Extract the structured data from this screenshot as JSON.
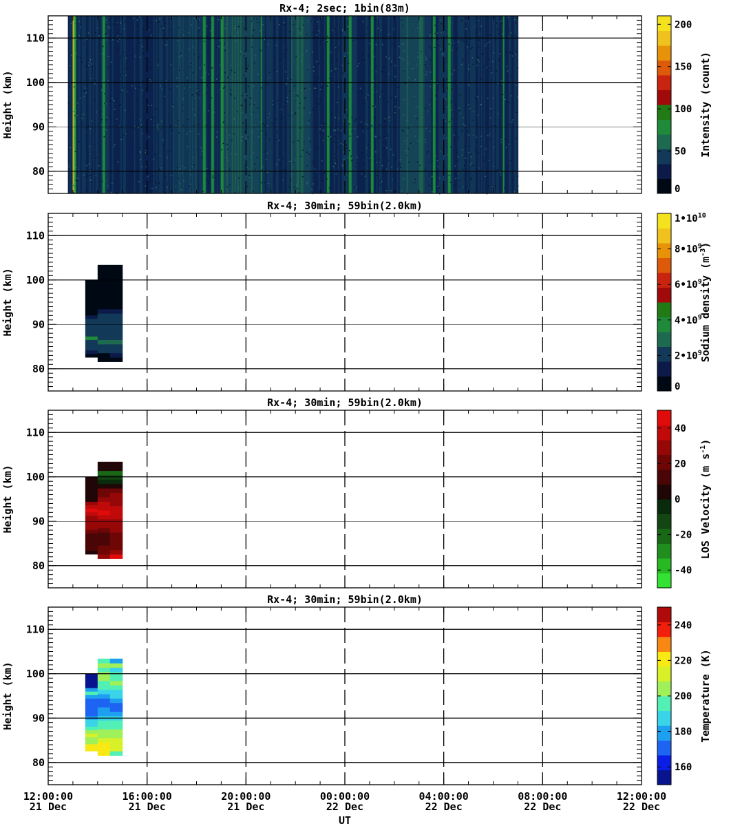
{
  "figure": {
    "xlabel": "UT",
    "x_ticks": [
      {
        "time": "12:00:00",
        "date": "21 Dec"
      },
      {
        "time": "16:00:00",
        "date": "21 Dec"
      },
      {
        "time": "20:00:00",
        "date": "21 Dec"
      },
      {
        "time": "00:00:00",
        "date": "22 Dec"
      },
      {
        "time": "04:00:00",
        "date": "22 Dec"
      },
      {
        "time": "08:00:00",
        "date": "22 Dec"
      },
      {
        "time": "12:00:00",
        "date": "22 Dec"
      }
    ]
  },
  "chart_data": [
    {
      "type": "heatmap",
      "title": "Rx-4;  2sec; 1bin(83m)",
      "ylabel": "Height (km)",
      "yticks": [
        80,
        90,
        100,
        110
      ],
      "ylim": [
        75,
        115
      ],
      "xlim_hours_ut": [
        12,
        36
      ],
      "data_start_ut_hour": 12.8,
      "data_end_ut_hour": 31.0,
      "colorbar": {
        "label": "Intensity (count)",
        "ticks": [
          "0",
          "50",
          "100",
          "150",
          "200"
        ],
        "tick_values": [
          0,
          50,
          100,
          150,
          200
        ],
        "range": [
          0,
          210
        ],
        "colors": [
          "#000814",
          "#0b1a48",
          "#123a58",
          "#1e6a50",
          "#1f8a3a",
          "#227a14",
          "#a00a0a",
          "#c82410",
          "#dc5a0a",
          "#e8920a",
          "#f0c21e",
          "#f4e21e"
        ]
      },
      "bright_bands_ut_hours": [
        13.0,
        13.05,
        14.2,
        18.3,
        18.6,
        19.0,
        20.6,
        23.3,
        24.2,
        25.1,
        27.6,
        28.2,
        30.4
      ]
    },
    {
      "type": "heatmap",
      "title": "Rx-4; 30min; 59bin(2.0km)",
      "ylabel": "Height (km)",
      "yticks": [
        80,
        90,
        100,
        110
      ],
      "ylim": [
        75,
        115
      ],
      "colorbar": {
        "label": "Sodium density (m^-3)",
        "ticks": [
          "0",
          "2•10^9",
          "4•10^9",
          "6•10^9",
          "8•10^9",
          "1•10^10"
        ],
        "tick_values": [
          0,
          2000000000,
          4000000000,
          6000000000,
          8000000000,
          10000000000
        ],
        "range": [
          0,
          10000000000
        ],
        "colors": [
          "#000814",
          "#0b1a48",
          "#123a58",
          "#1e6a50",
          "#1f8a3a",
          "#227a14",
          "#a00a0a",
          "#c82410",
          "#dc5a0a",
          "#e8920a",
          "#f0c21e",
          "#f4e21e"
        ]
      },
      "columns": [
        {
          "start_ut_hour": 13.5,
          "end_ut_hour": 14.0,
          "bottom_km": 82.6,
          "top_km": 100.0,
          "values": [
            300000000,
            900000000,
            2300000000,
            2400000000,
            2300000000,
            3600000000,
            2400000000,
            2300000000,
            2200000000,
            2100000000,
            1800000000,
            1100000000,
            600000000,
            200000000,
            0,
            0,
            0,
            0,
            0,
            0,
            0,
            0
          ]
        },
        {
          "start_ut_hour": 14.0,
          "end_ut_hour": 14.5,
          "bottom_km": 81.6,
          "top_km": 103.4,
          "values": [
            400000000,
            800000000,
            2300000000,
            2400000000,
            2500000000,
            2400000000,
            2400000000,
            2300000000,
            2200000000,
            2100000000,
            2000000000,
            1200000000,
            800000000,
            300000000,
            100000000,
            0,
            0,
            0,
            0,
            0,
            0,
            0
          ]
        },
        {
          "start_ut_hour": 14.5,
          "end_ut_hour": 15.0,
          "bottom_km": 81.6,
          "top_km": 103.4,
          "values": [
            400000000,
            1000000000,
            2300000000,
            2400000000,
            2500000000,
            2400000000,
            2400000000,
            2300000000,
            2200000000,
            2100000000,
            2000000000,
            1200000000,
            800000000,
            300000000,
            100000000,
            0,
            0,
            0,
            0,
            0,
            0,
            0
          ]
        }
      ]
    },
    {
      "type": "heatmap",
      "title": "Rx-4; 30min; 59bin(2.0km)",
      "ylabel": "Height (km)",
      "yticks": [
        80,
        90,
        100,
        110
      ],
      "ylim": [
        75,
        115
      ],
      "colorbar": {
        "label": "LOS Velocity (m s^-1)",
        "ticks": [
          "-40",
          "-20",
          "0",
          "20",
          "40"
        ],
        "tick_values": [
          -40,
          -20,
          0,
          20,
          40
        ],
        "range": [
          -50,
          50
        ],
        "colors": [
          "#34e234",
          "#28b824",
          "#1f8e1c",
          "#186816",
          "#124612",
          "#0a2a0c",
          "#200606",
          "#4a0606",
          "#6e0606",
          "#960808",
          "#c00a0a",
          "#e00c0c"
        ]
      },
      "columns": [
        {
          "start_ut_hour": 13.5,
          "end_ut_hour": 14.0,
          "bottom_km": 82.6,
          "top_km": 100.0,
          "values": [
            4,
            15,
            12,
            12,
            14,
            15,
            22,
            26,
            28,
            30,
            33,
            38,
            46,
            34,
            28,
            0,
            0,
            0,
            0,
            0,
            0,
            0
          ]
        },
        {
          "start_ut_hour": 14.0,
          "end_ut_hour": 14.5,
          "bottom_km": 81.6,
          "top_km": 103.4,
          "values": [
            30,
            24,
            22,
            14,
            14,
            15,
            22,
            28,
            30,
            38,
            46,
            38,
            34,
            27,
            24,
            18,
            5,
            -5,
            -10,
            -18,
            0,
            0
          ]
        },
        {
          "start_ut_hour": 14.5,
          "end_ut_hour": 15.0,
          "bottom_km": 81.6,
          "top_km": 103.4,
          "values": [
            45,
            25,
            24,
            24,
            24,
            24,
            30,
            30,
            30,
            34,
            36,
            36,
            33,
            30,
            26,
            18,
            8,
            -5,
            -12,
            -20,
            0,
            0
          ]
        }
      ]
    },
    {
      "type": "heatmap",
      "title": "Rx-4; 30min; 59bin(2.0km)",
      "ylabel": "Height (km)",
      "yticks": [
        80,
        90,
        100,
        110
      ],
      "ylim": [
        75,
        115
      ],
      "xlabel": "UT",
      "colorbar": {
        "label": "Temperature (K)",
        "ticks": [
          "160",
          "180",
          "200",
          "220",
          "240"
        ],
        "tick_values": [
          160,
          180,
          200,
          220,
          240
        ],
        "range": [
          150,
          250
        ],
        "colors": [
          "#08138e",
          "#0a1ee6",
          "#1e64f2",
          "#1ea0f0",
          "#3ad4e8",
          "#52f0b4",
          "#a0f05a",
          "#d8f028",
          "#f8e814",
          "#f88814",
          "#f01e0a",
          "#b00a0a"
        ]
      },
      "columns": [
        {
          "start_ut_hour": 13.5,
          "end_ut_hour": 14.0,
          "bottom_km": 82.6,
          "top_km": 100.0,
          "values": [
            222,
            218,
            207,
            205,
            210,
            200,
            197,
            190,
            186,
            178,
            172,
            168,
            170,
            174,
            168,
            180,
            198,
            178,
            0,
            0,
            0,
            0
          ]
        },
        {
          "start_ut_hour": 14.0,
          "end_ut_hour": 14.5,
          "bottom_km": 81.6,
          "top_km": 103.4,
          "values": [
            222,
            224,
            223,
            215,
            205,
            202,
            198,
            195,
            188,
            182,
            176,
            170,
            172,
            180,
            186,
            192,
            198,
            202,
            206,
            198,
            208,
            196
          ]
        },
        {
          "start_ut_hour": 14.5,
          "end_ut_hour": 15.0,
          "bottom_km": 81.6,
          "top_km": 103.4,
          "values": [
            198,
            212,
            216,
            210,
            205,
            200,
            198,
            194,
            188,
            176,
            168,
            170,
            178,
            184,
            188,
            194,
            200,
            198,
            196,
            190,
            202,
            178
          ]
        }
      ]
    }
  ]
}
